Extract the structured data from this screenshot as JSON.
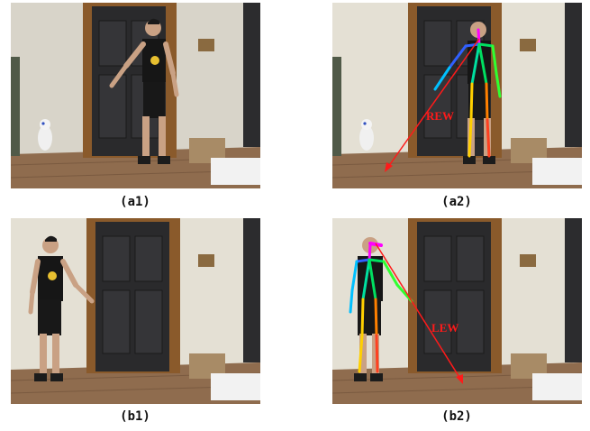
{
  "figure": {
    "panels": [
      {
        "id": "a1",
        "caption": "(a1)"
      },
      {
        "id": "a2",
        "caption": "(a2)",
        "annotation": "REW"
      },
      {
        "id": "b1",
        "caption": "(b1)"
      },
      {
        "id": "b2",
        "caption": "(b2)",
        "annotation": "LEW"
      }
    ]
  },
  "colors": {
    "wall": "#e4e0d4",
    "door": "#2a2a2c",
    "frame": "#8a5a2b",
    "floor": "#8f6c4e",
    "pointing_ray": "#ff1a1a",
    "skeleton_head": "#ff00ff",
    "skeleton_torso": "#00e060",
    "skeleton_left": "#ffd000",
    "skeleton_right": "#ff4020"
  }
}
